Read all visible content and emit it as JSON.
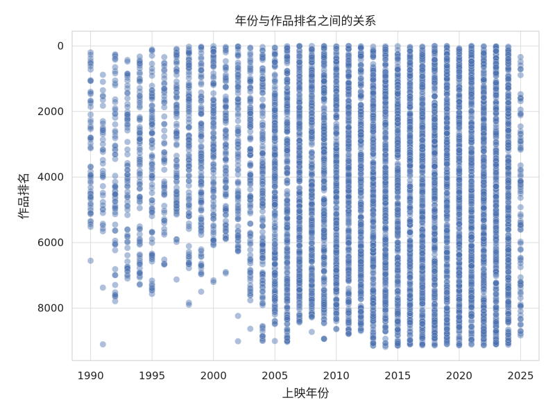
{
  "chart_data": {
    "type": "scatter",
    "title": "年份与作品排名之间的关系",
    "xlabel": "上映年份",
    "ylabel": "作品排名",
    "xlim": [
      1988.5,
      2026.5
    ],
    "ylim": [
      -450,
      9600
    ],
    "y_inverted": true,
    "grid": true,
    "x_ticks": [
      1990,
      1995,
      2000,
      2005,
      2010,
      2015,
      2020,
      2025
    ],
    "y_ticks": [
      0,
      2000,
      4000,
      6000,
      8000
    ],
    "point_color": "#4c72b0",
    "point_opacity": 0.45,
    "series": [
      {
        "x_years": [
          1990,
          1991,
          1992,
          1993,
          1994,
          1995,
          1996,
          1997,
          1998,
          1999,
          2000,
          2001,
          2002,
          2003,
          2004,
          2005,
          2006,
          2007,
          2008,
          2009,
          2010,
          2011,
          2012,
          2013,
          2014,
          2015,
          2016,
          2017,
          2018,
          2019,
          2020,
          2021,
          2022,
          2023,
          2024,
          2025
        ],
        "rank_ranges": [
          [
            [
              150,
              5550
            ],
            [
              6550,
              6560
            ]
          ],
          [
            [
              650,
              5800
            ],
            [
              7350,
              7400
            ],
            [
              9100,
              9120
            ]
          ],
          [
            [
              250,
              5500
            ],
            [
              5600,
              6300
            ],
            [
              6800,
              7800
            ]
          ],
          [
            [
              200,
              5300
            ],
            [
              5500,
              7300
            ]
          ],
          [
            [
              250,
              5000
            ],
            [
              5500,
              7300
            ]
          ],
          [
            [
              0,
              5200
            ],
            [
              5500,
              6600
            ],
            [
              7000,
              7600
            ]
          ],
          [
            [
              250,
              5800
            ],
            [
              6400,
              6800
            ]
          ],
          [
            [
              0,
              5200
            ],
            [
              5800,
              6000
            ],
            [
              7100,
              7150
            ]
          ],
          [
            [
              0,
              5600
            ],
            [
              6100,
              6800
            ],
            [
              7800,
              7900
            ]
          ],
          [
            [
              0,
              5800
            ],
            [
              6200,
              7000
            ],
            [
              7450,
              7500
            ]
          ],
          [
            [
              0,
              6200
            ],
            [
              7150,
              7250
            ]
          ],
          [
            [
              0,
              6000
            ],
            [
              6900,
              7050
            ]
          ],
          [
            [
              0,
              6500
            ],
            [
              8200,
              8250
            ],
            [
              9000,
              9050
            ]
          ],
          [
            [
              0,
              7900
            ],
            [
              8600,
              8650
            ]
          ],
          [
            [
              0,
              8000
            ],
            [
              8500,
              9050
            ]
          ],
          [
            [
              0,
              8500
            ],
            [
              9000,
              9050
            ]
          ],
          [
            [
              0,
              9050
            ]
          ],
          [
            [
              0,
              8500
            ]
          ],
          [
            [
              0,
              8300
            ],
            [
              8700,
              8750
            ]
          ],
          [
            [
              0,
              8500
            ],
            [
              8900,
              9000
            ]
          ],
          [
            [
              0,
              8700
            ]
          ],
          [
            [
              0,
              8800
            ]
          ],
          [
            [
              0,
              8700
            ]
          ],
          [
            [
              0,
              9150
            ]
          ],
          [
            [
              0,
              9200
            ]
          ],
          [
            [
              0,
              9150
            ]
          ],
          [
            [
              0,
              9150
            ]
          ],
          [
            [
              0,
              9150
            ]
          ],
          [
            [
              0,
              9150
            ]
          ],
          [
            [
              0,
              9150
            ]
          ],
          [
            [
              0,
              9150
            ]
          ],
          [
            [
              0,
              9150
            ]
          ],
          [
            [
              0,
              9150
            ]
          ],
          [
            [
              0,
              9150
            ]
          ],
          [
            [
              0,
              9150
            ]
          ],
          [
            [
              250,
              9100
            ]
          ]
        ],
        "points_per_year": [
          60,
          40,
          70,
          75,
          90,
          90,
          60,
          90,
          110,
          110,
          110,
          100,
          100,
          120,
          150,
          220,
          230,
          250,
          250,
          260,
          260,
          260,
          280,
          300,
          300,
          300,
          300,
          320,
          320,
          330,
          330,
          330,
          330,
          330,
          330,
          90
        ]
      }
    ]
  }
}
